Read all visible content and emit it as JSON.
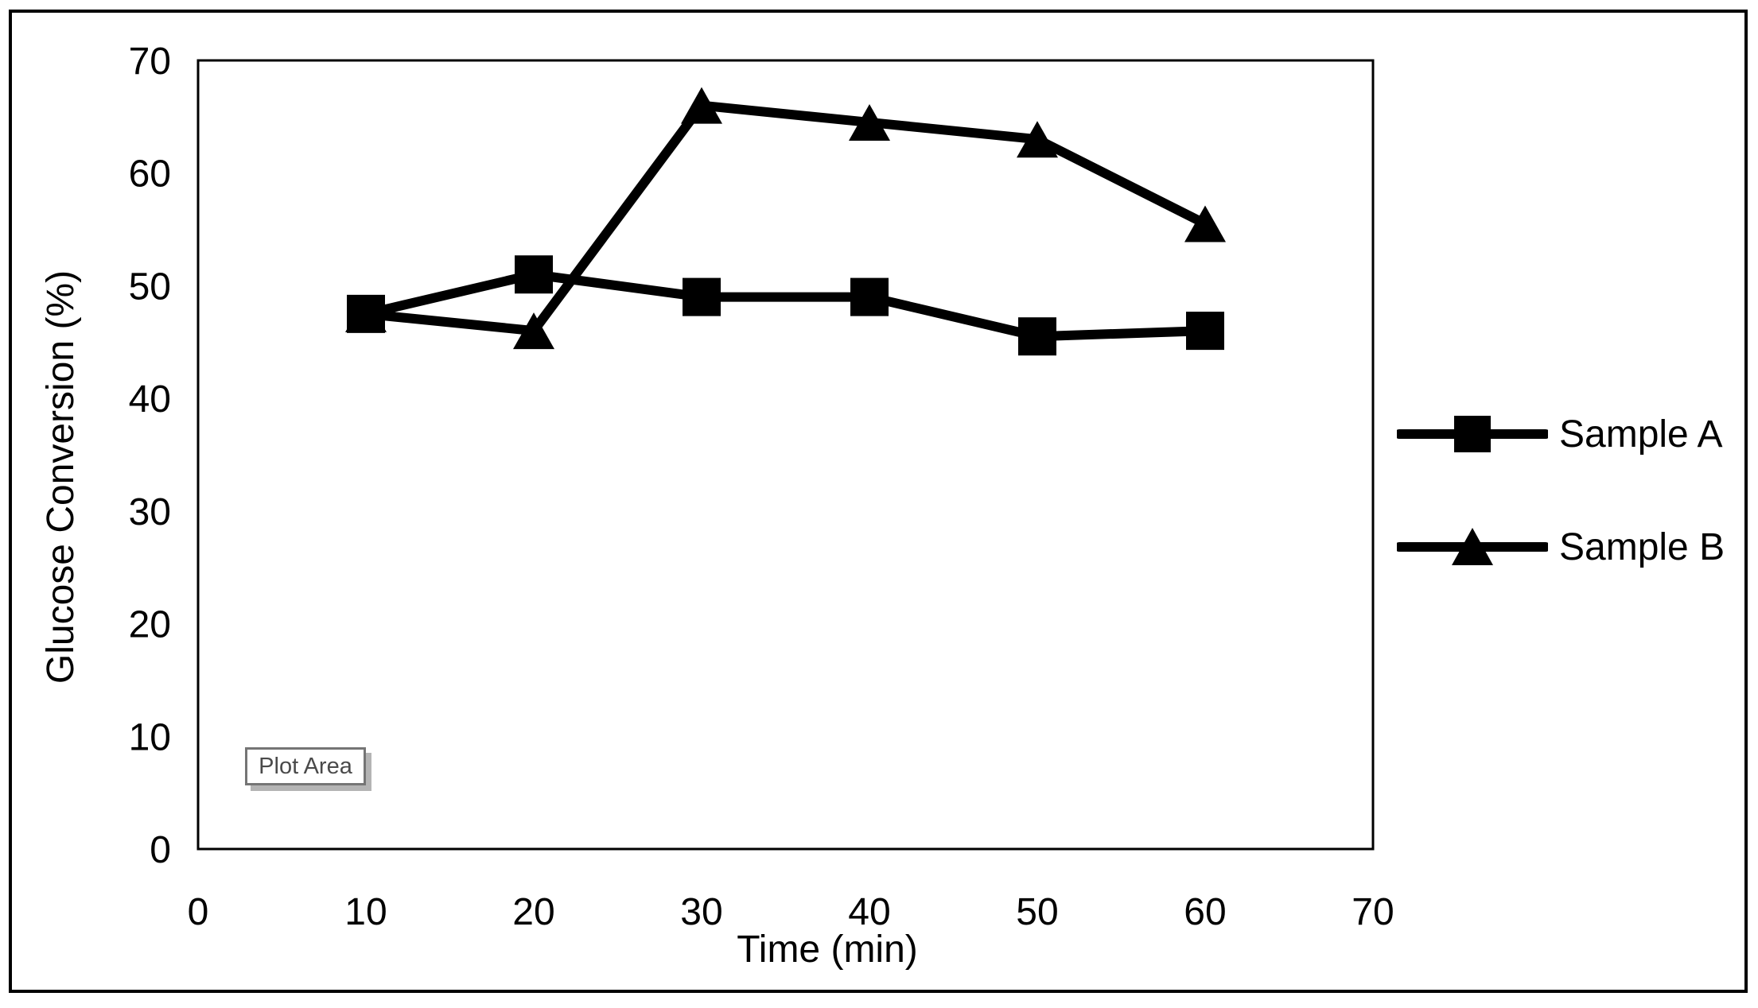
{
  "figure": {
    "plot_area_label": "Plot Area"
  },
  "chart_data": {
    "type": "line",
    "title": "",
    "xlabel": "Time (min)",
    "ylabel": "Glucose Conversion (%)",
    "xlim": [
      0,
      70
    ],
    "ylim": [
      0,
      70
    ],
    "x_ticks": [
      0,
      10,
      20,
      30,
      40,
      50,
      60,
      70
    ],
    "y_ticks": [
      0,
      10,
      20,
      30,
      40,
      50,
      60,
      70
    ],
    "grid": false,
    "legend_position": "right",
    "line_color": "#000000",
    "x": [
      10,
      20,
      30,
      40,
      50,
      60
    ],
    "series": [
      {
        "name": "Sample A",
        "marker": "square",
        "values": [
          47.5,
          51,
          49,
          49,
          45.5,
          46
        ]
      },
      {
        "name": "Sample B",
        "marker": "triangle",
        "values": [
          47.5,
          46,
          66,
          64.5,
          63,
          55.5
        ]
      }
    ]
  }
}
